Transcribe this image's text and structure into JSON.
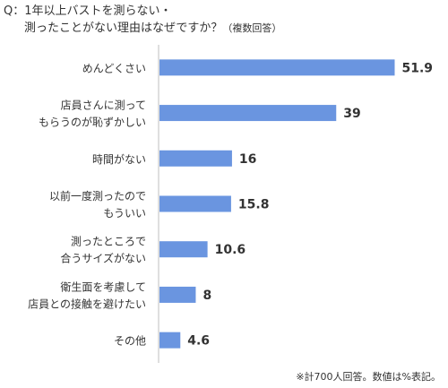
{
  "title": {
    "line1": "Q：1年以上バストを測らない・",
    "line2": "測ったことがない理由はなぜですか？",
    "note": "（複数回答）"
  },
  "footnote": "※計700人回答。数値は%表記。",
  "chart_data": {
    "type": "bar",
    "orientation": "horizontal",
    "categories": [
      [
        "めんどくさい"
      ],
      [
        "店員さんに測って",
        "もらうのが恥ずかしい"
      ],
      [
        "時間がない"
      ],
      [
        "以前一度測ったので",
        "もういい"
      ],
      [
        "測ったところで",
        "合うサイズがない"
      ],
      [
        "衛生面を考慮して",
        "店員との接触を避けたい"
      ],
      [
        "その他"
      ]
    ],
    "values": [
      51.9,
      39,
      16,
      15.8,
      10.6,
      8,
      4.6
    ],
    "value_labels": [
      "51.9",
      "39",
      "16",
      "15.8",
      "10.6",
      "8",
      "4.6"
    ],
    "xlim": [
      0,
      52
    ],
    "bar_color": "#6a95e0",
    "grid": false,
    "legend": "none"
  }
}
